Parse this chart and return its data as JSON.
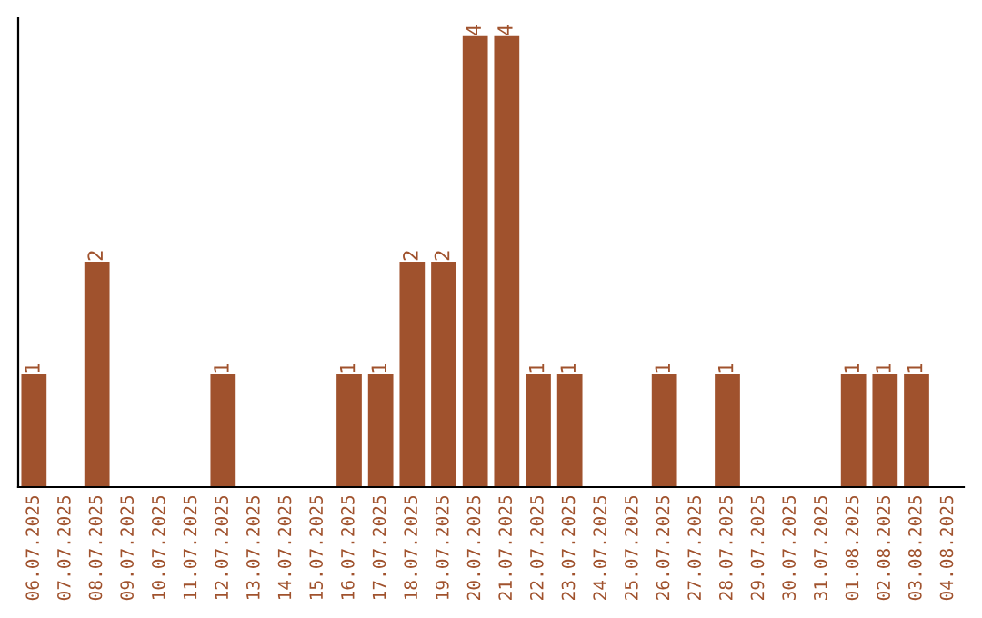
{
  "chart_data": {
    "type": "bar",
    "categories": [
      "06.07.2025",
      "07.07.2025",
      "08.07.2025",
      "09.07.2025",
      "10.07.2025",
      "11.07.2025",
      "12.07.2025",
      "13.07.2025",
      "14.07.2025",
      "15.07.2025",
      "16.07.2025",
      "17.07.2025",
      "18.07.2025",
      "19.07.2025",
      "20.07.2025",
      "21.07.2025",
      "22.07.2025",
      "23.07.2025",
      "24.07.2025",
      "25.07.2025",
      "26.07.2025",
      "27.07.2025",
      "28.07.2025",
      "29.07.2025",
      "30.07.2025",
      "31.07.2025",
      "01.08.2025",
      "02.08.2025",
      "03.08.2025",
      "04.08.2025"
    ],
    "values": [
      1,
      0,
      2,
      0,
      0,
      0,
      1,
      0,
      0,
      0,
      1,
      1,
      2,
      2,
      4,
      4,
      1,
      1,
      0,
      0,
      1,
      0,
      1,
      0,
      0,
      0,
      1,
      1,
      1,
      0
    ],
    "value_labels": [
      "1",
      null,
      "2",
      null,
      null,
      null,
      "1",
      null,
      null,
      null,
      "1",
      "1",
      "2",
      "2",
      "4",
      "4",
      "1",
      "1",
      null,
      null,
      "1",
      null,
      "1",
      null,
      null,
      null,
      "1",
      "1",
      "1",
      null
    ],
    "color": "#a0522d",
    "ylim": [
      0,
      4.16
    ],
    "tick_labels": "x",
    "grid": false,
    "legend": false
  }
}
